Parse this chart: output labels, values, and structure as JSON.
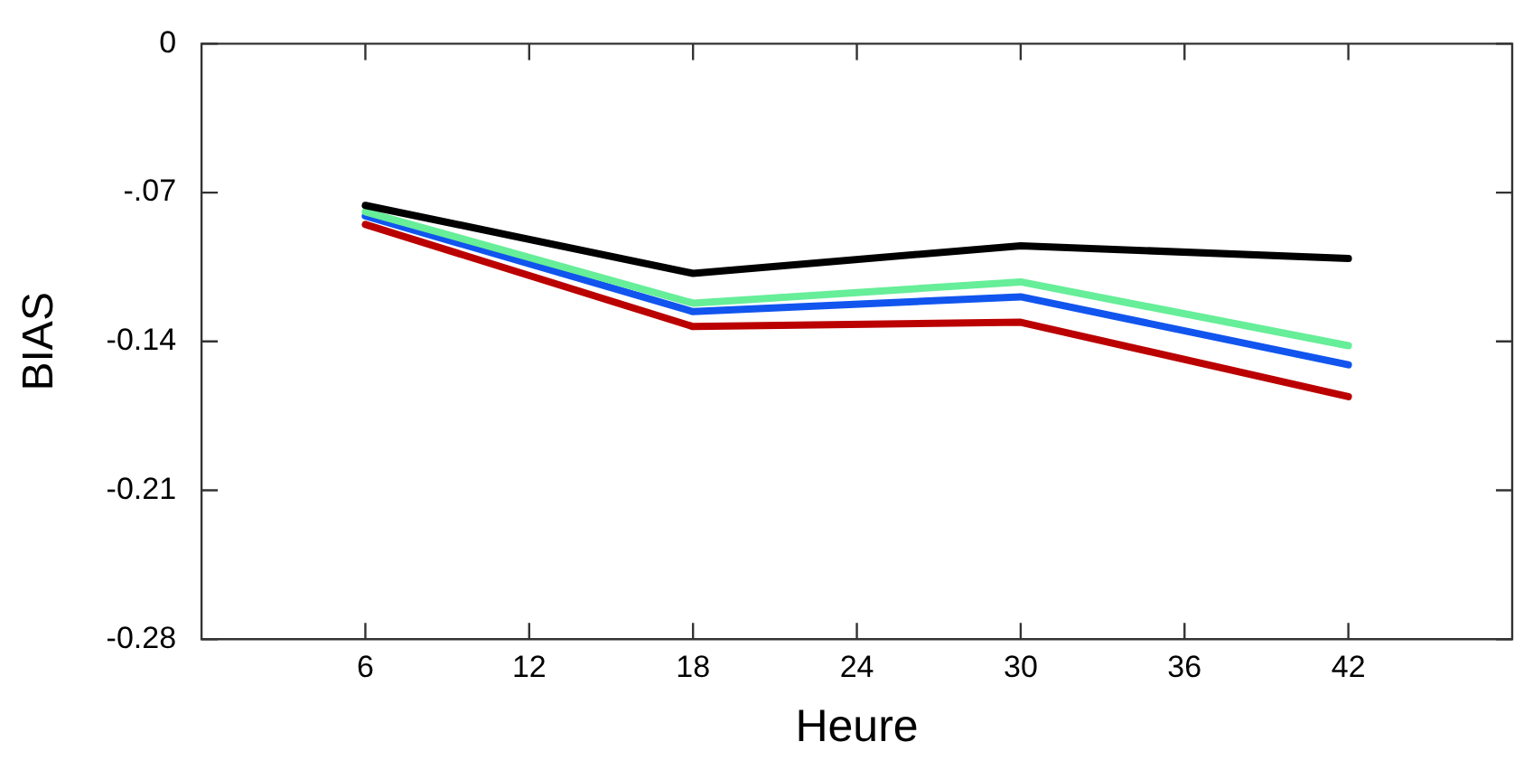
{
  "chart_data": {
    "type": "line",
    "xlabel": "Heure",
    "ylabel": "BIAS",
    "x": [
      6,
      18,
      30,
      42
    ],
    "series": [
      {
        "color": "#000000",
        "values": [
          -0.076,
          -0.108,
          -0.095,
          -0.101
        ]
      },
      {
        "color": "#66ee99",
        "values": [
          -0.079,
          -0.122,
          -0.112,
          -0.142
        ]
      },
      {
        "color": "#1155ee",
        "values": [
          -0.081,
          -0.126,
          -0.119,
          -0.151
        ]
      },
      {
        "color": "#bb0000",
        "values": [
          -0.085,
          -0.133,
          -0.131,
          -0.166
        ]
      }
    ],
    "xlim": [
      0,
      48
    ],
    "xticks": [
      6,
      12,
      18,
      24,
      30,
      36,
      42
    ],
    "ylim": [
      -0.28,
      0
    ],
    "yticks": [
      {
        "value": 0,
        "label": "0"
      },
      {
        "value": -0.07,
        "label": "-.07"
      },
      -0.14,
      -0.21,
      -0.28
    ],
    "grid": false,
    "legend": false,
    "marker": "none",
    "line_style": "solid"
  }
}
